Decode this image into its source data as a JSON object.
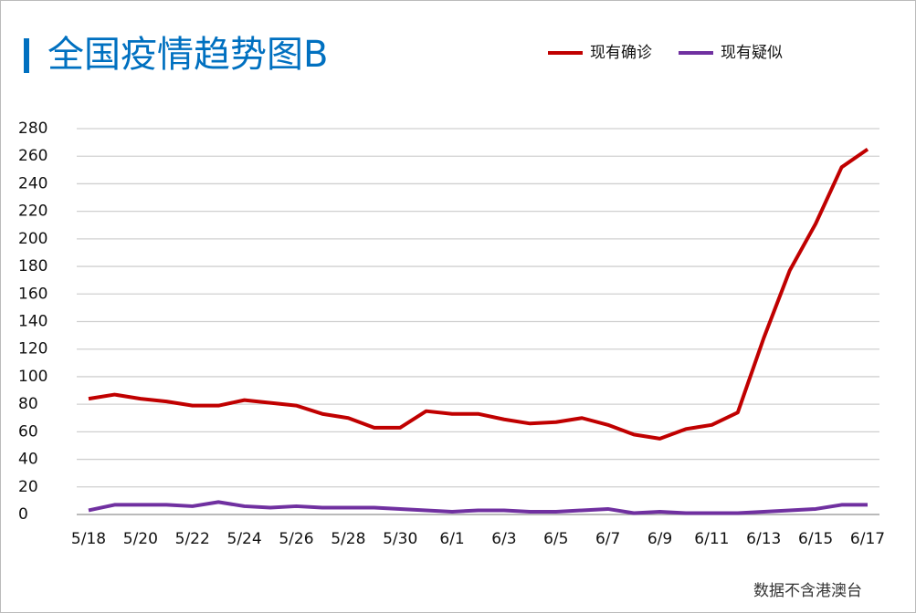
{
  "chart_data": {
    "type": "line",
    "title": "全国疫情趋势图B",
    "categories": [
      "5/18",
      null,
      "5/20",
      null,
      "5/22",
      null,
      "5/24",
      null,
      "5/26",
      null,
      "5/28",
      null,
      "5/30",
      null,
      "6/1",
      null,
      "6/3",
      null,
      "6/5",
      null,
      "6/7",
      null,
      "6/9",
      null,
      "6/11",
      null,
      "6/13",
      null,
      "6/15",
      null,
      "6/17"
    ],
    "series": [
      {
        "name": "现有确诊",
        "color": "#c00000",
        "values": [
          84,
          87,
          84,
          82,
          79,
          79,
          83,
          81,
          79,
          73,
          70,
          63,
          63,
          75,
          73,
          73,
          69,
          66,
          67,
          70,
          65,
          58,
          55,
          62,
          65,
          74,
          128,
          177,
          211,
          252,
          265
        ]
      },
      {
        "name": "现有疑似",
        "color": "#7030a0",
        "values": [
          3,
          7,
          7,
          7,
          6,
          9,
          6,
          5,
          6,
          5,
          5,
          5,
          4,
          3,
          2,
          3,
          3,
          2,
          2,
          3,
          4,
          1,
          2,
          1,
          1,
          1,
          2,
          3,
          4,
          7,
          7
        ]
      }
    ],
    "ylim": [
      0,
      280
    ],
    "yticks": [
      0,
      20,
      40,
      60,
      80,
      100,
      120,
      140,
      160,
      180,
      200,
      220,
      240,
      260,
      280
    ],
    "grid": true,
    "legend": "top-right",
    "note": "数据不含港澳台"
  }
}
